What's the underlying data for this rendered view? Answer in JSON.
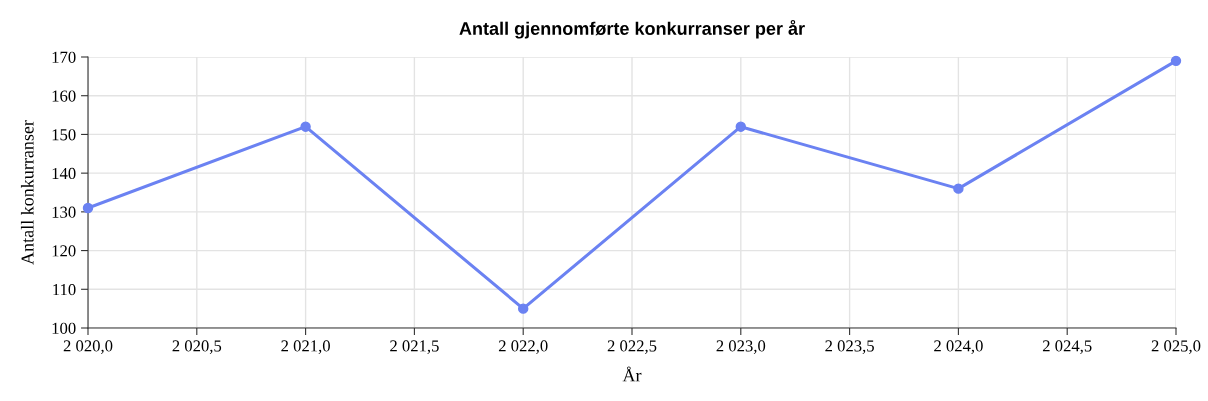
{
  "chart_data": {
    "type": "line",
    "title": "Antall gjennomførte konkurranser per år",
    "xlabel": "År",
    "ylabel": "Antall konkurranser",
    "x": [
      2020,
      2021,
      2022,
      2023,
      2024,
      2025
    ],
    "series": [
      {
        "color": "#6b82f2",
        "values": [
          131,
          152,
          105,
          152,
          136,
          169
        ]
      }
    ],
    "xlim": [
      2020,
      2025
    ],
    "ylim": [
      100,
      170
    ],
    "xticks": [
      {
        "value": 2020,
        "label": "2 020,0"
      },
      {
        "value": 2020.5,
        "label": "2 020,5"
      },
      {
        "value": 2021,
        "label": "2 021,0"
      },
      {
        "value": 2021.5,
        "label": "2 021,5"
      },
      {
        "value": 2022,
        "label": "2 022,0"
      },
      {
        "value": 2022.5,
        "label": "2 022,5"
      },
      {
        "value": 2023,
        "label": "2 023,0"
      },
      {
        "value": 2023.5,
        "label": "2 023,5"
      },
      {
        "value": 2024,
        "label": "2 024,0"
      },
      {
        "value": 2024.5,
        "label": "2 024,5"
      },
      {
        "value": 2025,
        "label": "2 025,0"
      }
    ],
    "yticks": [
      100,
      110,
      120,
      130,
      140,
      150,
      160,
      170
    ],
    "grid": true,
    "marker": "circle",
    "line_style": "solid",
    "legend": false
  }
}
